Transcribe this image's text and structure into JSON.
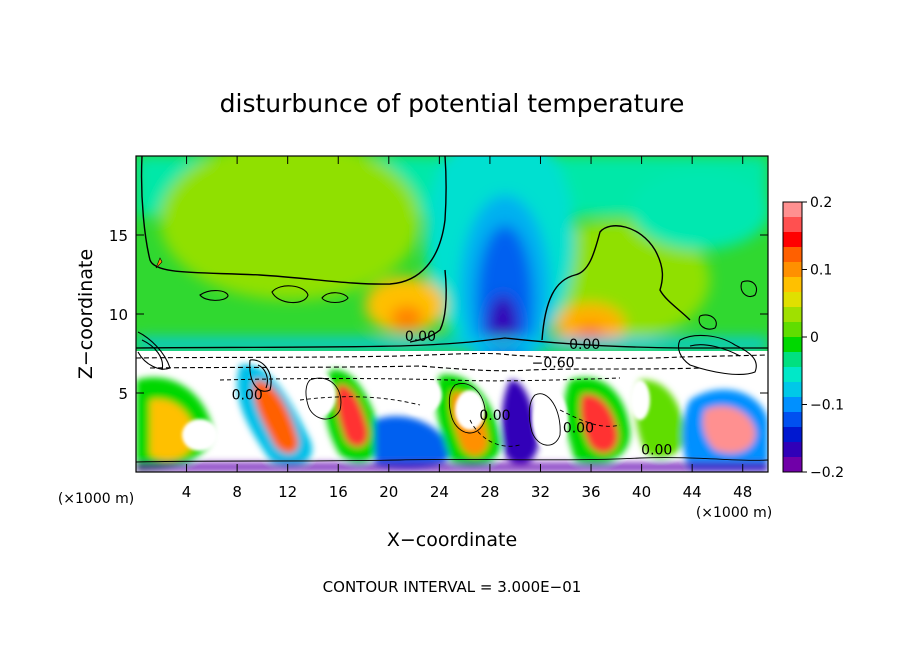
{
  "chart_data": {
    "type": "heatmap",
    "title": "disturbunce of potential temperature",
    "xlabel": "X−coordinate",
    "ylabel": "Z−coordinate",
    "x_unit_left": "(×1000 m)",
    "x_unit_right": "(×1000 m)",
    "x_ticks": [
      "4",
      "8",
      "12",
      "16",
      "20",
      "24",
      "28",
      "32",
      "36",
      "40",
      "44",
      "48"
    ],
    "y_ticks": [
      "5",
      "10",
      "15"
    ],
    "xlim": [
      0,
      50
    ],
    "ylim": [
      0,
      20
    ],
    "contour_interval_text": "CONTOUR INTERVAL = 3.000E−01",
    "contour_labels": [
      {
        "text": "0.00",
        "x": 22.5,
        "y": 8.3
      },
      {
        "text": "0.00",
        "x": 35.5,
        "y": 7.8
      },
      {
        "text": "−0.60",
        "x": 33.0,
        "y": 6.6
      },
      {
        "text": "0.00",
        "x": 28.4,
        "y": 3.3
      },
      {
        "text": "0.00",
        "x": 35.0,
        "y": 2.5
      },
      {
        "text": "0.00",
        "x": 41.2,
        "y": 1.1
      },
      {
        "text": "0.00",
        "x": 8.8,
        "y": 4.6
      }
    ],
    "colorbar": {
      "min": -0.2,
      "max": 0.2,
      "tick_labels": [
        "0.2",
        "0.1",
        "0",
        "−0.1",
        "−0.2"
      ],
      "tick_values": [
        0.2,
        0.1,
        0,
        -0.1,
        -0.2
      ],
      "colors": [
        "#ff9090",
        "#ff5050",
        "#ff0000",
        "#ff6000",
        "#ff9000",
        "#ffc000",
        "#e0e000",
        "#a0e000",
        "#60dd00",
        "#00d800",
        "#00e080",
        "#00e8c8",
        "#00c8e8",
        "#0090ff",
        "#0050f0",
        "#0018d0",
        "#3000b8",
        "#7000a8"
      ]
    },
    "field_description_colors": {
      "positive_low": "#a0e000",
      "positive_mid": "#ffc000",
      "zero": "#00d800",
      "negative_low": "#00c8e8",
      "negative_mid": "#0050f0",
      "negative_strong": "#3000b8",
      "background_mixed": "#ffffff"
    },
    "grid": false
  }
}
